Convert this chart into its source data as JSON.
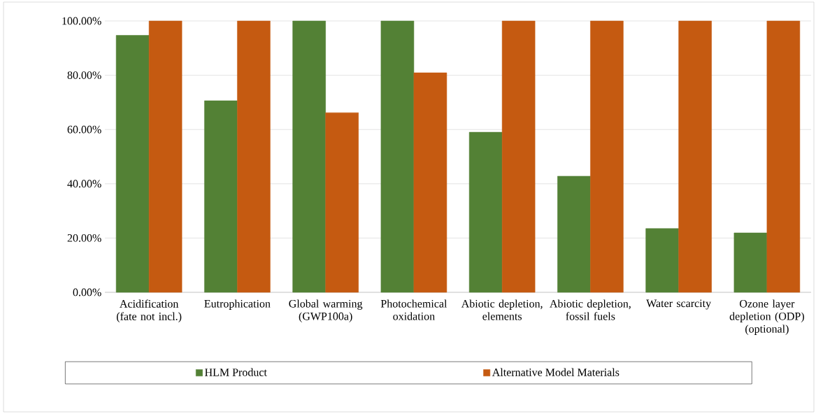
{
  "chart_data": {
    "type": "bar",
    "categories": [
      "Acidification (fate not incl.)",
      "Eutrophication",
      "Global warming (GWP100a)",
      "Photochemical oxidation",
      "Abiotic depletion, elements",
      "Abiotic depletion, fossil fuels",
      "Water scarcity",
      "Ozone layer depletion (ODP) (optional)"
    ],
    "series": [
      {
        "name": "HLM Product",
        "color": "#538135",
        "values": [
          94.7,
          70.6,
          100,
          100,
          59.0,
          42.8,
          23.5,
          21.9
        ]
      },
      {
        "name": "Alternative Model Materials",
        "color": "#c55a11",
        "values": [
          100,
          100,
          66.2,
          80.9,
          100,
          100,
          100,
          100
        ]
      }
    ],
    "ylim": [
      0,
      100
    ],
    "yticks": [
      {
        "value": 0,
        "label": "0.00%"
      },
      {
        "value": 20,
        "label": "20.00%"
      },
      {
        "value": 40,
        "label": "40.00%"
      },
      {
        "value": 60,
        "label": "60.00%"
      },
      {
        "value": 80,
        "label": "80.00%"
      },
      {
        "value": 100,
        "label": "100.00%"
      }
    ],
    "grid": "y",
    "legend": "bottom"
  }
}
